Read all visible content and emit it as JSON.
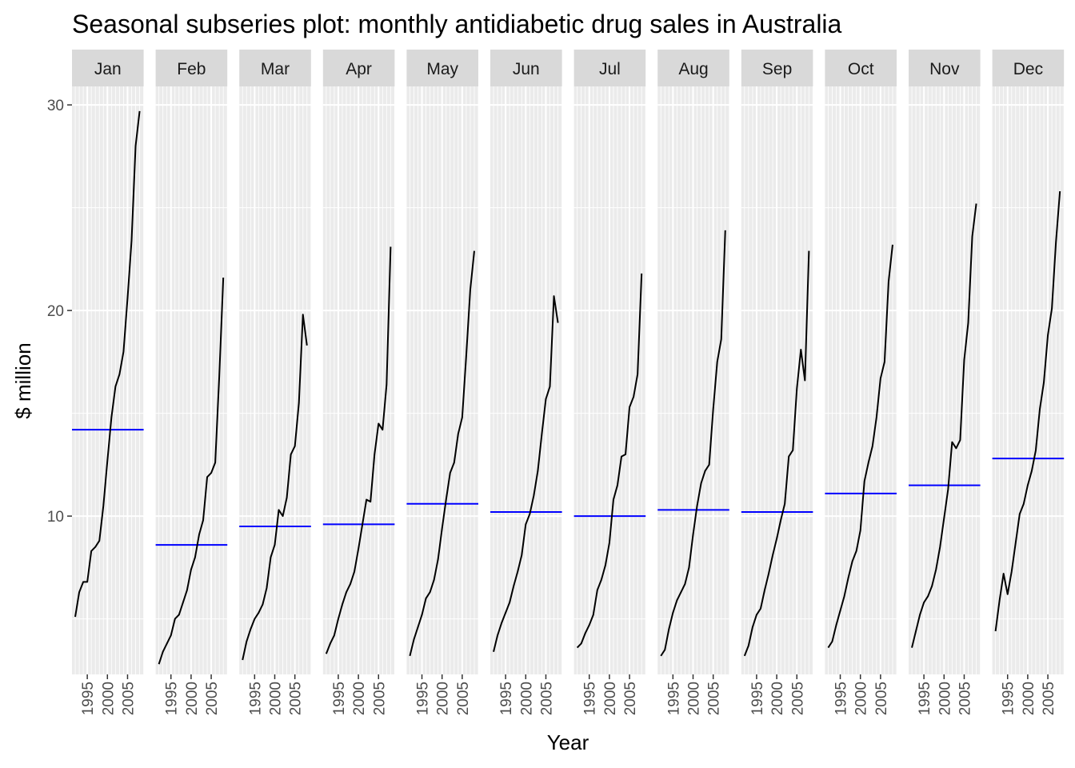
{
  "chart_data": {
    "type": "line",
    "title": "Seasonal subseries plot: monthly antidiabetic drug sales in Australia",
    "xlabel": "Year",
    "ylabel": "$ million",
    "facets": [
      "Jan",
      "Feb",
      "Mar",
      "Apr",
      "May",
      "Jun",
      "Jul",
      "Aug",
      "Sep",
      "Oct",
      "Nov",
      "Dec"
    ],
    "x_ticks": [
      "1995",
      "2000",
      "2005"
    ],
    "x_tick_values": [
      1995,
      2000,
      2005
    ],
    "y_ticks": [
      "10",
      "20",
      "30"
    ],
    "y_tick_values": [
      10,
      20,
      30
    ],
    "xlim": [
      1991.2,
      2009.0
    ],
    "ylim": [
      2.3,
      30.9
    ],
    "grid": true,
    "colors": {
      "panel_bg": "#ebebeb",
      "grid_major": "#ffffff",
      "strip_bg": "#d9d9d9",
      "series_line": "#000000",
      "mean_line": "#0000ff",
      "tick": "#333333"
    },
    "series": [
      {
        "facet": "Jan",
        "start_year": 1992,
        "values": [
          5.1,
          6.3,
          6.8,
          6.8,
          8.3,
          8.5,
          8.8,
          10.5,
          12.7,
          14.8,
          16.3,
          16.9,
          18.0,
          20.6,
          23.4,
          28.0,
          29.7
        ],
        "mean": 14.2
      },
      {
        "facet": "Feb",
        "start_year": 1992,
        "values": [
          2.8,
          3.4,
          3.8,
          4.2,
          5.0,
          5.2,
          5.8,
          6.4,
          7.4,
          8.0,
          9.1,
          9.8,
          11.9,
          12.1,
          12.6,
          16.8,
          21.6
        ],
        "mean": 8.6
      },
      {
        "facet": "Mar",
        "start_year": 1992,
        "values": [
          3.0,
          3.9,
          4.5,
          5.0,
          5.3,
          5.7,
          6.5,
          8.0,
          8.6,
          10.3,
          10.0,
          10.9,
          13.0,
          13.4,
          15.5,
          19.8,
          18.3
        ],
        "mean": 9.5
      },
      {
        "facet": "Apr",
        "start_year": 1992,
        "values": [
          3.3,
          3.8,
          4.2,
          5.0,
          5.7,
          6.3,
          6.7,
          7.3,
          8.4,
          9.6,
          10.8,
          10.7,
          13.0,
          14.5,
          14.2,
          16.4,
          23.1
        ],
        "mean": 9.6
      },
      {
        "facet": "May",
        "start_year": 1992,
        "values": [
          3.2,
          4.0,
          4.6,
          5.2,
          6.0,
          6.3,
          6.9,
          7.9,
          9.4,
          10.8,
          12.1,
          12.6,
          14.0,
          14.8,
          17.8,
          21.0,
          22.9
        ],
        "mean": 10.6
      },
      {
        "facet": "Jun",
        "start_year": 1992,
        "values": [
          3.4,
          4.2,
          4.8,
          5.3,
          5.8,
          6.6,
          7.3,
          8.1,
          9.6,
          10.1,
          11.0,
          12.2,
          14.0,
          15.7,
          16.3,
          20.7,
          19.4
        ],
        "mean": 10.2
      },
      {
        "facet": "Jul",
        "start_year": 1992,
        "values": [
          3.6,
          3.8,
          4.3,
          4.7,
          5.2,
          6.4,
          6.9,
          7.6,
          8.7,
          10.8,
          11.5,
          12.9,
          13.0,
          15.3,
          15.8,
          16.9,
          21.8
        ],
        "mean": 10.0
      },
      {
        "facet": "Aug",
        "start_year": 1992,
        "values": [
          3.2,
          3.5,
          4.5,
          5.3,
          5.9,
          6.3,
          6.7,
          7.5,
          9.1,
          10.5,
          11.6,
          12.2,
          12.5,
          15.2,
          17.5,
          18.6,
          23.9
        ],
        "mean": 10.3
      },
      {
        "facet": "Sep",
        "start_year": 1992,
        "values": [
          3.2,
          3.7,
          4.6,
          5.2,
          5.5,
          6.4,
          7.2,
          8.1,
          8.9,
          9.8,
          10.6,
          12.9,
          13.2,
          16.2,
          18.1,
          16.6,
          22.9
        ],
        "mean": 10.2
      },
      {
        "facet": "Oct",
        "start_year": 1992,
        "values": [
          3.6,
          3.9,
          4.7,
          5.4,
          6.1,
          7.0,
          7.8,
          8.3,
          9.3,
          11.7,
          12.6,
          13.4,
          14.8,
          16.7,
          17.5,
          21.4,
          23.2
        ],
        "mean": 11.1
      },
      {
        "facet": "Nov",
        "start_year": 1992,
        "values": [
          3.6,
          4.4,
          5.2,
          5.8,
          6.1,
          6.6,
          7.4,
          8.5,
          9.9,
          11.3,
          13.6,
          13.3,
          13.7,
          17.6,
          19.4,
          23.6,
          25.2
        ],
        "mean": 11.5
      },
      {
        "facet": "Dec",
        "start_year": 1992,
        "values": [
          4.4,
          5.9,
          7.2,
          6.2,
          7.3,
          8.7,
          10.1,
          10.6,
          11.5,
          12.2,
          13.2,
          15.2,
          16.5,
          18.8,
          20.1,
          23.3,
          25.8
        ],
        "mean": 12.8
      }
    ]
  }
}
